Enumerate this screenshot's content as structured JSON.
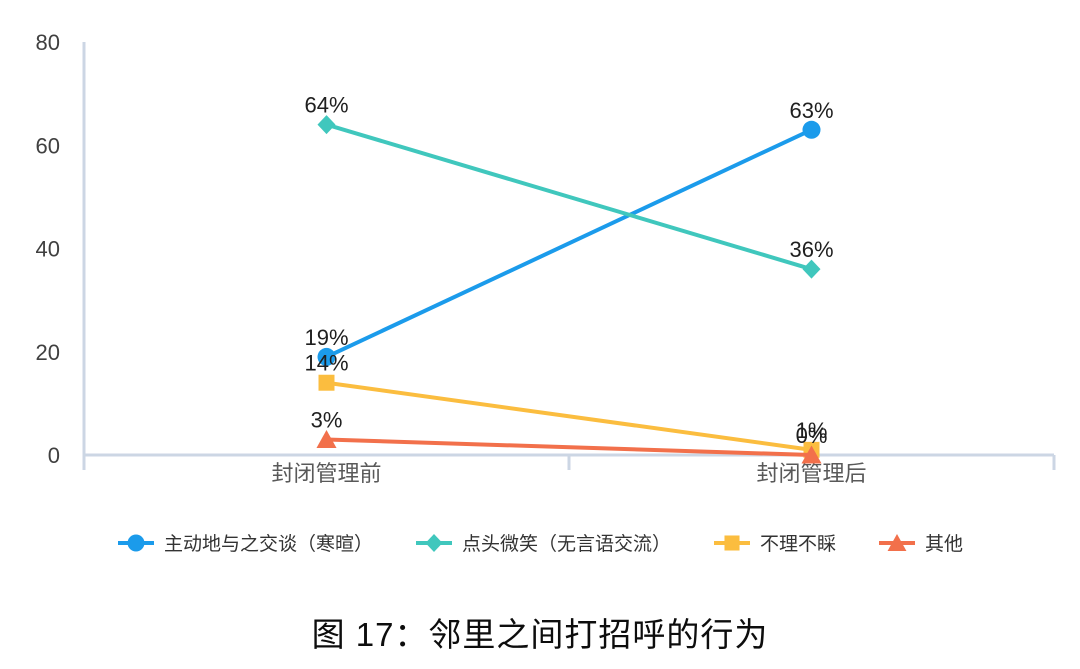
{
  "caption": "图 17：邻里之间打招呼的行为",
  "chart_data": {
    "type": "line",
    "title": "",
    "xlabel": "",
    "ylabel": "",
    "categories": [
      "封闭管理前",
      "封闭管理后"
    ],
    "series": [
      {
        "name": "主动地与之交谈（寒暄）",
        "values": [
          19,
          63
        ],
        "labels": [
          "19%",
          "63%"
        ],
        "color": "#1b9beb",
        "marker": "circle"
      },
      {
        "name": "点头微笑（无言语交流）",
        "values": [
          64,
          36
        ],
        "labels": [
          "64%",
          "36%"
        ],
        "color": "#40c7bd",
        "marker": "diamond"
      },
      {
        "name": "不理不睬",
        "values": [
          14,
          1
        ],
        "labels": [
          "14%",
          "1%"
        ],
        "color": "#fbbd3f",
        "marker": "square"
      },
      {
        "name": "其他",
        "values": [
          3,
          0
        ],
        "labels": [
          "3%",
          "0%"
        ],
        "color": "#f2704b",
        "marker": "triangle"
      }
    ],
    "y_axis": {
      "min": 0,
      "max": 80,
      "ticks": [
        0,
        20,
        40,
        60,
        80
      ]
    },
    "grid": false,
    "legend_position": "bottom"
  },
  "colors": {
    "axis_line": "#ccd6e4",
    "y_tick_label": "#404040",
    "category_label": "#595959",
    "data_label": "#1f1f1f",
    "legend_label": "#333333"
  }
}
